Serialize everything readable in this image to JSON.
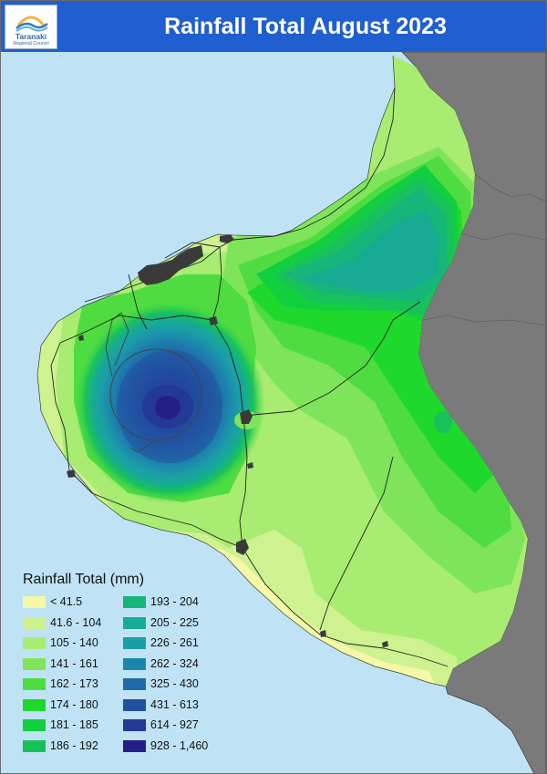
{
  "header": {
    "title": "Rainfall Total August 2023",
    "logo_name": "Taranaki",
    "logo_subtitle": "Regional Council"
  },
  "map": {
    "colors": {
      "sea": "#bfe3f4",
      "neighbouring_land": "#7a7a7a",
      "urban": "#3a3a3a",
      "header": "#1f5fcf"
    }
  },
  "legend": {
    "title": "Rainfall Total (mm)",
    "items": [
      {
        "label": "< 41.5",
        "color": "#f3f9a6"
      },
      {
        "label": "41.6 - 104",
        "color": "#cdf28f"
      },
      {
        "label": "105 - 140",
        "color": "#a8ec72"
      },
      {
        "label": "141 - 161",
        "color": "#7ee55a"
      },
      {
        "label": "162 - 173",
        "color": "#4fdc40"
      },
      {
        "label": "174 - 180",
        "color": "#1ed92b"
      },
      {
        "label": "181 - 185",
        "color": "#11cf3f"
      },
      {
        "label": "186 - 192",
        "color": "#18c25a"
      },
      {
        "label": "193 - 204",
        "color": "#16b57a"
      },
      {
        "label": "205 - 225",
        "color": "#17ab93"
      },
      {
        "label": "226 - 261",
        "color": "#1a9ea8"
      },
      {
        "label": "262 - 324",
        "color": "#1c86ad"
      },
      {
        "label": "325 - 430",
        "color": "#1f6aa9"
      },
      {
        "label": "431 - 613",
        "color": "#2250a1"
      },
      {
        "label": "614 - 927",
        "color": "#243895"
      },
      {
        "label": "928 - 1,460",
        "color": "#241f87"
      }
    ]
  }
}
